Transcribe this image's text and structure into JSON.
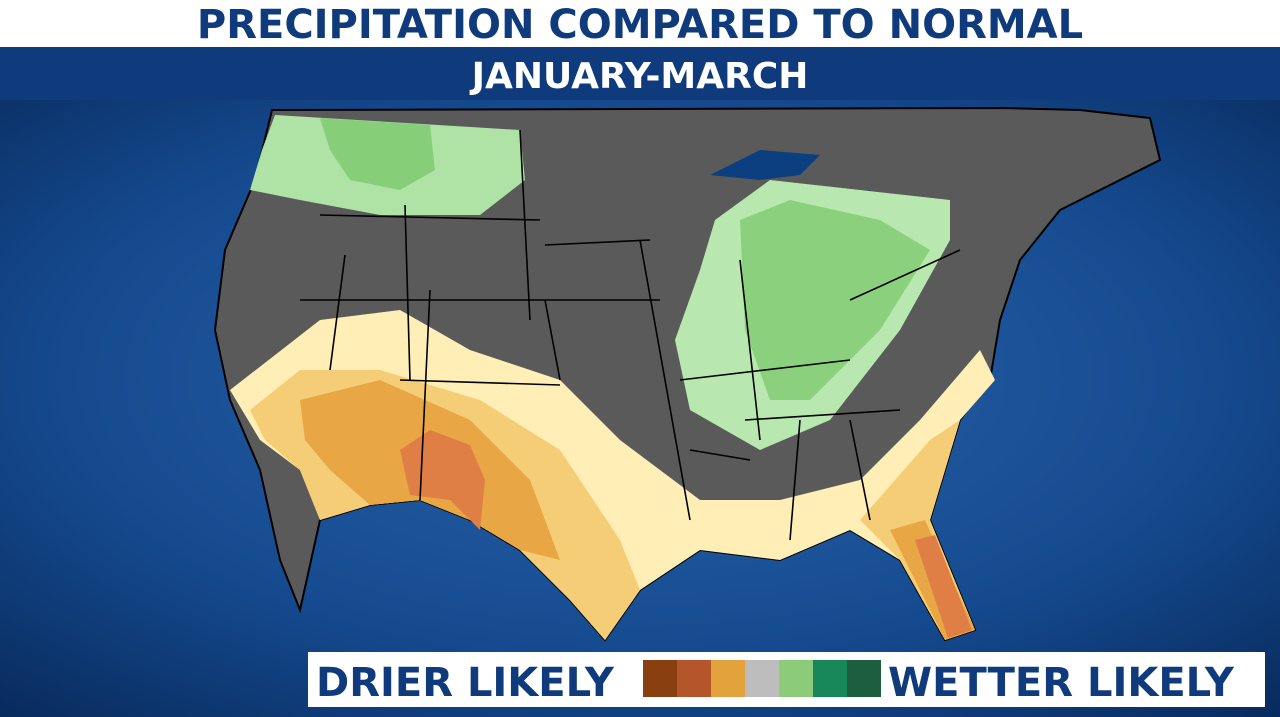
{
  "header": {
    "title": "PRECIPITATION COMPARED TO NORMAL",
    "subtitle": "JANUARY-MARCH"
  },
  "legend": {
    "left_label": "DRIER LIKELY",
    "right_label": "WETTER LIKELY",
    "colors": [
      "#8a3f10",
      "#b4552c",
      "#e2a33c",
      "#bdbdbd",
      "#8ccb7a",
      "#17875a",
      "#1d5e3f"
    ]
  }
}
